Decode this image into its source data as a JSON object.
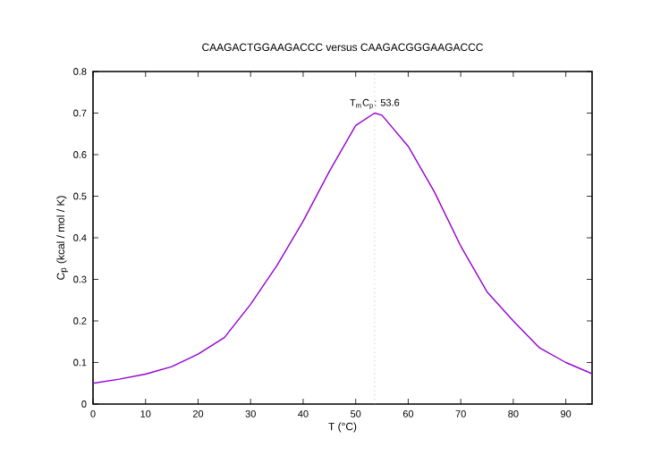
{
  "chart_data": {
    "type": "line",
    "title": "CAAGACTGGAAGACCC versus CAAGACGGGAAGACCC",
    "xlabel": "T (°C)",
    "ylabel": "C$_{p}$ (kcal / mol / K)",
    "x": [
      0,
      5,
      10,
      15,
      20,
      25,
      30,
      35,
      40,
      45,
      50,
      53.6,
      55,
      60,
      65,
      70,
      75,
      80,
      85,
      90,
      95
    ],
    "series": [
      {
        "color": "#9400d3",
        "values": [
          0.05,
          0.06,
          0.072,
          0.09,
          0.12,
          0.16,
          0.24,
          0.333,
          0.44,
          0.56,
          0.67,
          0.7,
          0.695,
          0.62,
          0.51,
          0.38,
          0.27,
          0.2,
          0.135,
          0.1,
          0.073
        ]
      }
    ],
    "xlim": [
      0,
      95
    ],
    "ylim": [
      0,
      0.8
    ],
    "xticks": [
      0,
      10,
      20,
      30,
      40,
      50,
      60,
      70,
      80,
      90
    ],
    "yticks": [
      0,
      0.1,
      0.2,
      0.3,
      0.4,
      0.5,
      0.6,
      0.7,
      0.8
    ],
    "ref_lines": [
      {
        "axis": "x",
        "value": 53.6,
        "color": "#a0a0a0",
        "line_style": "dotted"
      }
    ],
    "annotations": [
      {
        "text": "T$_{m}$C$_{p}$: 53.6",
        "x": 53.6,
        "y": 0.7
      }
    ],
    "marker": "none",
    "line_style": "solid"
  }
}
